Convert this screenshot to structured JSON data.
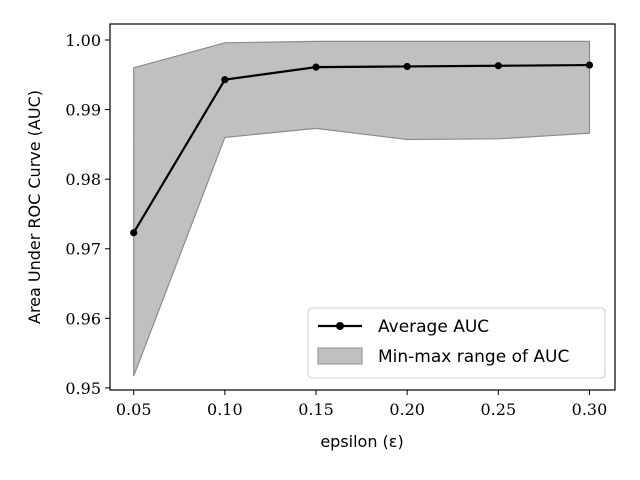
{
  "chart_data": {
    "type": "line",
    "xlabel": "epsilon (ε)",
    "ylabel": "Area Under ROC Curve (AUC)",
    "x": [
      0.05,
      0.1,
      0.15,
      0.2,
      0.25,
      0.3
    ],
    "x_ticks": [
      "0.05",
      "0.10",
      "0.15",
      "0.20",
      "0.25",
      "0.30"
    ],
    "y_ticks": [
      "0.95",
      "0.96",
      "0.97",
      "0.98",
      "0.99",
      "1.00"
    ],
    "xlim": [
      0.037,
      0.314
    ],
    "ylim": [
      0.9497,
      1.0023
    ],
    "series": [
      {
        "name": "Average AUC",
        "kind": "line",
        "color": "#000000",
        "values": [
          0.9723,
          0.9943,
          0.9961,
          0.9962,
          0.9963,
          0.9964
        ]
      },
      {
        "name": "Min-max range of AUC",
        "kind": "area",
        "color": "#c0c0c0",
        "edge_color": "#8c8c8c",
        "upper": [
          0.996,
          0.9996,
          0.9998,
          0.9998,
          0.9998,
          0.9998
        ],
        "lower": [
          0.9517,
          0.986,
          0.9873,
          0.9857,
          0.9858,
          0.9866
        ]
      }
    ],
    "grid": false,
    "legend_position": "lower-right"
  }
}
